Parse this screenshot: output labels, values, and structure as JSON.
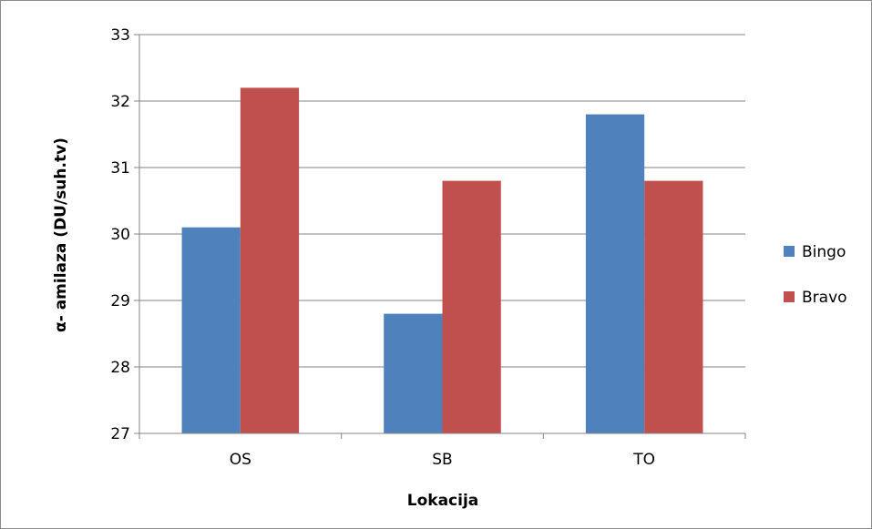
{
  "chart_data": {
    "type": "bar",
    "title": "",
    "xlabel": "Lokacija",
    "ylabel": "α- amilaza (DU/suh.tv)",
    "categories": [
      "OS",
      "SB",
      "TO"
    ],
    "series": [
      {
        "name": "Bingo",
        "values": [
          30.1,
          28.8,
          31.8
        ],
        "color": "#4f81bd"
      },
      {
        "name": "Bravo",
        "values": [
          32.2,
          30.8,
          30.8
        ],
        "color": "#c0504d"
      }
    ],
    "ylim": [
      27,
      33
    ],
    "yticks": [
      27,
      28,
      29,
      30,
      31,
      32,
      33
    ],
    "grid": true,
    "legend_position": "right"
  }
}
